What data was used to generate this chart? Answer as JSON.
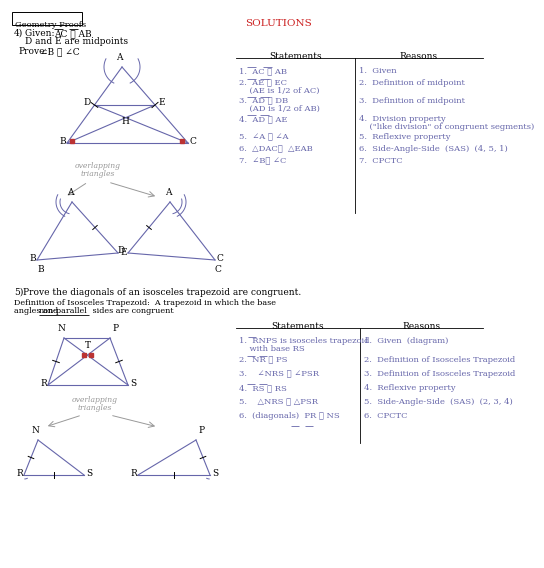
{
  "title_box": "Geometry Proofs",
  "solutions_title": "SOLUTIONS",
  "p4_number": "4)",
  "p4_given1": "Given:  ",
  "p4_ac": "AC",
  "p4_cong": " ≅ ",
  "p4_ab": "AB",
  "p4_given2": "        D and E are midpoints",
  "p4_prove": "Prove:",
  "p4_prove_val": "  ∠B ≅ ∠C",
  "p4_stmt_header": "Statements",
  "p4_rsn_header": "Reasons",
  "p4_stmts": [
    "1.  AC ≅ AB",
    "2.  AE ≅ EC",
    "    (AE is 1/2 of AC)",
    "3.  AD ≅ DB",
    "    (AD is 1/2 of AB)",
    "4.  AD ≅ AE",
    "5.  ∠A ≅ ∠A",
    "6.  △DAC≅  △EAB",
    "7.  ∠B≅ ∠C"
  ],
  "p4_rsns": [
    "1.  Given",
    "2.  Definition of midpoint",
    "",
    "3.  Definition of midpoint",
    "",
    "4.  Division property",
    "    (\"like division\" of congruent segments)",
    "5.  Reflexive property",
    "6.  Side-Angle-Side  (SAS)  (4, 5, 1)",
    "7.  CPCTC"
  ],
  "p5_number": "5)",
  "p5_stmt": "Prove the diagonals of an isosceles trapezoid are congruent.",
  "p5_def1": "Definition of Isosceles Trapezoid:  A trapezoid in which the base",
  "p5_def2a": "angles and ",
  "p5_def2b": "non-parallel",
  "p5_def2c": " sides are congruent",
  "p5_stmt_header": "Statements",
  "p5_rsn_header": "Reasons",
  "overlap_text1": "overlapping",
  "overlap_text2": "triangles",
  "blue": "#6666aa",
  "red": "#bb3333",
  "sol_red": "#cc2222",
  "gray": "#999999",
  "txt_blue": "#6666aa"
}
